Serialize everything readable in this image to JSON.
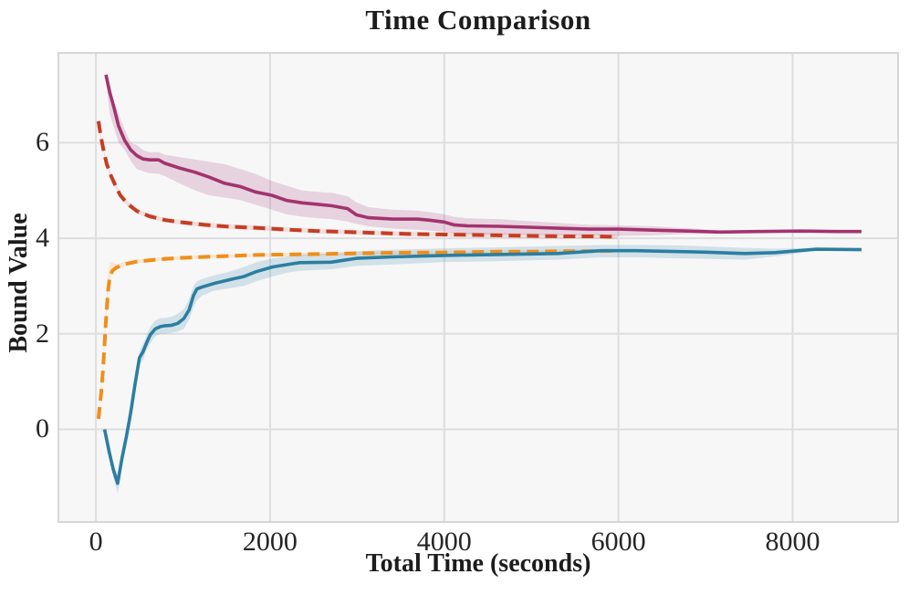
{
  "chart": {
    "plot_bg": "#F7F7F8",
    "grid_color": "#DEDEE1",
    "frame_color": "#D6D6DA",
    "text_color": "#1C1C1C"
  },
  "chart_data": {
    "type": "line",
    "title": "Time Comparison",
    "xlabel": "Total Time (seconds)",
    "ylabel": "Bound Value",
    "xlim": [
      -420,
      9200
    ],
    "ylim": [
      -1.92,
      7.86
    ],
    "xticks": [
      0,
      2000,
      4000,
      6000,
      8000
    ],
    "yticks": [
      0,
      2,
      4,
      6
    ],
    "grid": true,
    "legend": "none",
    "series": [
      {
        "name": "upper-bound-solid-magenta",
        "color": "#A3336E",
        "style": "solid",
        "width": 3.6,
        "band_opacity": 0.18,
        "x": [
          115,
          160,
          210,
          260,
          330,
          400,
          470,
          540,
          620,
          720,
          790,
          960,
          1140,
          1300,
          1480,
          1660,
          1830,
          2020,
          2190,
          2370,
          2550,
          2710,
          2890,
          2990,
          3130,
          3410,
          3690,
          3820,
          4000,
          4110,
          4270,
          4630,
          4970,
          5310,
          5660,
          6010,
          6400,
          6800,
          7150,
          7600,
          8100,
          8500,
          8790
        ],
        "y": [
          7.42,
          7.05,
          6.72,
          6.35,
          6.05,
          5.85,
          5.73,
          5.66,
          5.64,
          5.64,
          5.57,
          5.47,
          5.38,
          5.28,
          5.15,
          5.08,
          4.97,
          4.9,
          4.79,
          4.74,
          4.71,
          4.68,
          4.62,
          4.49,
          4.43,
          4.4,
          4.4,
          4.38,
          4.34,
          4.28,
          4.26,
          4.25,
          4.23,
          4.21,
          4.19,
          4.19,
          4.17,
          4.15,
          4.13,
          4.14,
          4.15,
          4.14,
          4.14
        ],
        "band": {
          "x": [
            115,
            160,
            210,
            260,
            330,
            400,
            470,
            540,
            620,
            720,
            790,
            960,
            1140,
            1300,
            1480,
            1660,
            1830,
            2020,
            2190,
            2370,
            2550,
            2710,
            2890,
            2990,
            3130,
            3410,
            3690,
            3820,
            4000,
            4110,
            4270,
            4630,
            4970,
            5310,
            5660,
            6010,
            6400,
            6800,
            7150,
            7400
          ],
          "lo": [
            7.3,
            6.6,
            6.3,
            6.0,
            5.85,
            5.62,
            5.45,
            5.4,
            5.36,
            5.35,
            5.3,
            5.15,
            5.0,
            4.9,
            4.85,
            4.8,
            4.7,
            4.6,
            4.5,
            4.45,
            4.42,
            4.4,
            4.35,
            4.3,
            4.25,
            4.2,
            4.18,
            4.16,
            4.14,
            4.1,
            4.08,
            4.07,
            4.07,
            4.06,
            4.06,
            4.05,
            4.06,
            4.09,
            4.11,
            4.13
          ],
          "hi": [
            7.5,
            7.2,
            6.85,
            6.6,
            6.28,
            6.0,
            5.95,
            5.85,
            5.8,
            5.8,
            5.75,
            5.7,
            5.65,
            5.6,
            5.55,
            5.45,
            5.35,
            5.2,
            5.1,
            5.0,
            4.97,
            4.95,
            4.88,
            4.75,
            4.65,
            4.6,
            4.58,
            4.55,
            4.5,
            4.45,
            4.42,
            4.4,
            4.36,
            4.32,
            4.28,
            4.27,
            4.25,
            4.21,
            4.17,
            4.15
          ]
        }
      },
      {
        "name": "upper-bound-dashed-red",
        "color": "#C63D23",
        "style": "dashed",
        "width": 4,
        "band_opacity": 0.13,
        "x": [
          30,
          60,
          90,
          125,
          175,
          230,
          280,
          365,
          470,
          615,
          800,
          1000,
          1250,
          1550,
          1840,
          2200,
          2550,
          2900,
          3230,
          3600,
          3930,
          4300,
          4630,
          5000,
          5400,
          5700,
          5990
        ],
        "y": [
          6.45,
          6.1,
          5.82,
          5.55,
          5.3,
          5.08,
          4.9,
          4.72,
          4.57,
          4.46,
          4.38,
          4.33,
          4.28,
          4.24,
          4.22,
          4.18,
          4.15,
          4.13,
          4.11,
          4.09,
          4.08,
          4.07,
          4.06,
          4.05,
          4.04,
          4.04,
          4.03
        ],
        "band": {
          "x": [
            30,
            60,
            90,
            125,
            175,
            230,
            280,
            365,
            470,
            615,
            800,
            1000,
            1250,
            1550,
            1840,
            2200,
            2550,
            2900,
            3230,
            3600,
            3930,
            4300,
            4630,
            5000,
            5400,
            5700,
            5990
          ],
          "lo": [
            6.4,
            6.05,
            5.77,
            5.5,
            5.25,
            5.03,
            4.85,
            4.67,
            4.52,
            4.41,
            4.33,
            4.28,
            4.23,
            4.19,
            4.17,
            4.13,
            4.1,
            4.08,
            4.06,
            4.04,
            4.03,
            4.02,
            4.01,
            4.0,
            3.99,
            3.99,
            3.98
          ],
          "hi": [
            6.5,
            6.15,
            5.87,
            5.6,
            5.35,
            5.13,
            4.95,
            4.77,
            4.62,
            4.51,
            4.43,
            4.38,
            4.33,
            4.29,
            4.27,
            4.23,
            4.2,
            4.18,
            4.16,
            4.14,
            4.13,
            4.12,
            4.11,
            4.1,
            4.09,
            4.09,
            4.08
          ]
        }
      },
      {
        "name": "lower-bound-dashed-orange",
        "color": "#F08E18",
        "style": "dashed",
        "width": 4,
        "band_opacity": 0.15,
        "x": [
          30,
          60,
          80,
          100,
          120,
          140,
          160,
          190,
          230,
          280,
          365,
          470,
          615,
          800,
          1000,
          1250,
          1550,
          1840,
          2200,
          2550,
          2900,
          3230,
          3600,
          3930,
          4300,
          4630,
          5000,
          5400,
          5700,
          5990
        ],
        "y": [
          0.22,
          0.75,
          1.2,
          1.8,
          2.4,
          2.9,
          3.2,
          3.32,
          3.38,
          3.42,
          3.47,
          3.51,
          3.54,
          3.57,
          3.59,
          3.61,
          3.63,
          3.65,
          3.66,
          3.67,
          3.68,
          3.69,
          3.7,
          3.7,
          3.71,
          3.72,
          3.72,
          3.73,
          3.73,
          3.74
        ],
        "band": {
          "x": [
            30,
            60,
            80,
            100,
            120,
            140,
            160,
            190,
            230,
            280,
            365,
            470,
            615,
            800,
            1000,
            1250,
            1550,
            1840,
            2200,
            2550,
            2900,
            3230,
            3600,
            3930,
            4300,
            4630,
            5000,
            5400,
            5700,
            5990
          ],
          "lo": [
            0.18,
            0.7,
            1.15,
            1.74,
            2.34,
            2.84,
            3.14,
            3.27,
            3.33,
            3.38,
            3.43,
            3.47,
            3.5,
            3.53,
            3.55,
            3.57,
            3.59,
            3.61,
            3.62,
            3.63,
            3.64,
            3.65,
            3.66,
            3.66,
            3.67,
            3.68,
            3.68,
            3.69,
            3.69,
            3.7
          ],
          "hi": [
            0.3,
            0.9,
            1.45,
            2.1,
            2.75,
            3.25,
            3.5,
            3.5,
            3.46,
            3.48,
            3.52,
            3.56,
            3.58,
            3.61,
            3.63,
            3.65,
            3.66,
            3.68,
            3.69,
            3.7,
            3.71,
            3.72,
            3.73,
            3.73,
            3.74,
            3.75,
            3.75,
            3.76,
            3.76,
            3.77
          ]
        }
      },
      {
        "name": "lower-bound-solid-teal",
        "color": "#2B7EA1",
        "style": "solid",
        "width": 3.6,
        "band_opacity": 0.18,
        "x": [
          100,
          150,
          200,
          250,
          300,
          350,
          400,
          450,
          500,
          540,
          580,
          625,
          680,
          740,
          800,
          870,
          940,
          1010,
          1070,
          1120,
          1160,
          1220,
          1350,
          1530,
          1700,
          1840,
          2030,
          2200,
          2340,
          2700,
          2990,
          3400,
          4000,
          4600,
          5300,
          5800,
          6200,
          6700,
          7000,
          7450,
          7800,
          8270,
          8790
        ],
        "y": [
          0.0,
          -0.45,
          -0.85,
          -1.13,
          -0.6,
          -0.15,
          0.35,
          0.95,
          1.5,
          1.62,
          1.8,
          1.98,
          2.1,
          2.15,
          2.17,
          2.18,
          2.22,
          2.32,
          2.5,
          2.8,
          2.94,
          2.98,
          3.05,
          3.13,
          3.2,
          3.3,
          3.4,
          3.45,
          3.49,
          3.5,
          3.58,
          3.61,
          3.64,
          3.66,
          3.68,
          3.74,
          3.74,
          3.72,
          3.71,
          3.68,
          3.7,
          3.77,
          3.76
        ],
        "band": {
          "x": [
            100,
            150,
            200,
            250,
            300,
            350,
            400,
            450,
            500,
            540,
            580,
            625,
            680,
            740,
            800,
            870,
            940,
            1010,
            1070,
            1120,
            1160,
            1220,
            1350,
            1530,
            1700,
            1840,
            2030,
            2200,
            2340,
            2700,
            2990,
            3400,
            4000,
            4600,
            5300,
            5800,
            6200,
            6700,
            7000,
            7450,
            7800,
            8270,
            8790
          ],
          "lo": [
            0.0,
            -0.55,
            -1.0,
            -1.35,
            -0.78,
            -0.32,
            0.18,
            0.8,
            1.35,
            1.45,
            1.65,
            1.8,
            1.95,
            2.0,
            2.0,
            2.02,
            2.05,
            2.1,
            2.3,
            2.55,
            2.7,
            2.8,
            2.9,
            2.95,
            3.0,
            3.1,
            3.2,
            3.28,
            3.32,
            3.35,
            3.42,
            3.45,
            3.5,
            3.52,
            3.55,
            3.6,
            3.6,
            3.58,
            3.57,
            3.55,
            3.62,
            3.74,
            3.74
          ],
          "hi": [
            0.0,
            -0.35,
            -0.7,
            -0.95,
            -0.45,
            0.0,
            0.5,
            1.1,
            1.62,
            1.78,
            1.95,
            2.15,
            2.28,
            2.33,
            2.33,
            2.36,
            2.42,
            2.52,
            2.72,
            3.0,
            3.1,
            3.15,
            3.22,
            3.3,
            3.4,
            3.5,
            3.58,
            3.62,
            3.66,
            3.68,
            3.73,
            3.76,
            3.79,
            3.81,
            3.84,
            3.86,
            3.86,
            3.85,
            3.83,
            3.8,
            3.78,
            3.8,
            3.78
          ]
        }
      }
    ]
  }
}
